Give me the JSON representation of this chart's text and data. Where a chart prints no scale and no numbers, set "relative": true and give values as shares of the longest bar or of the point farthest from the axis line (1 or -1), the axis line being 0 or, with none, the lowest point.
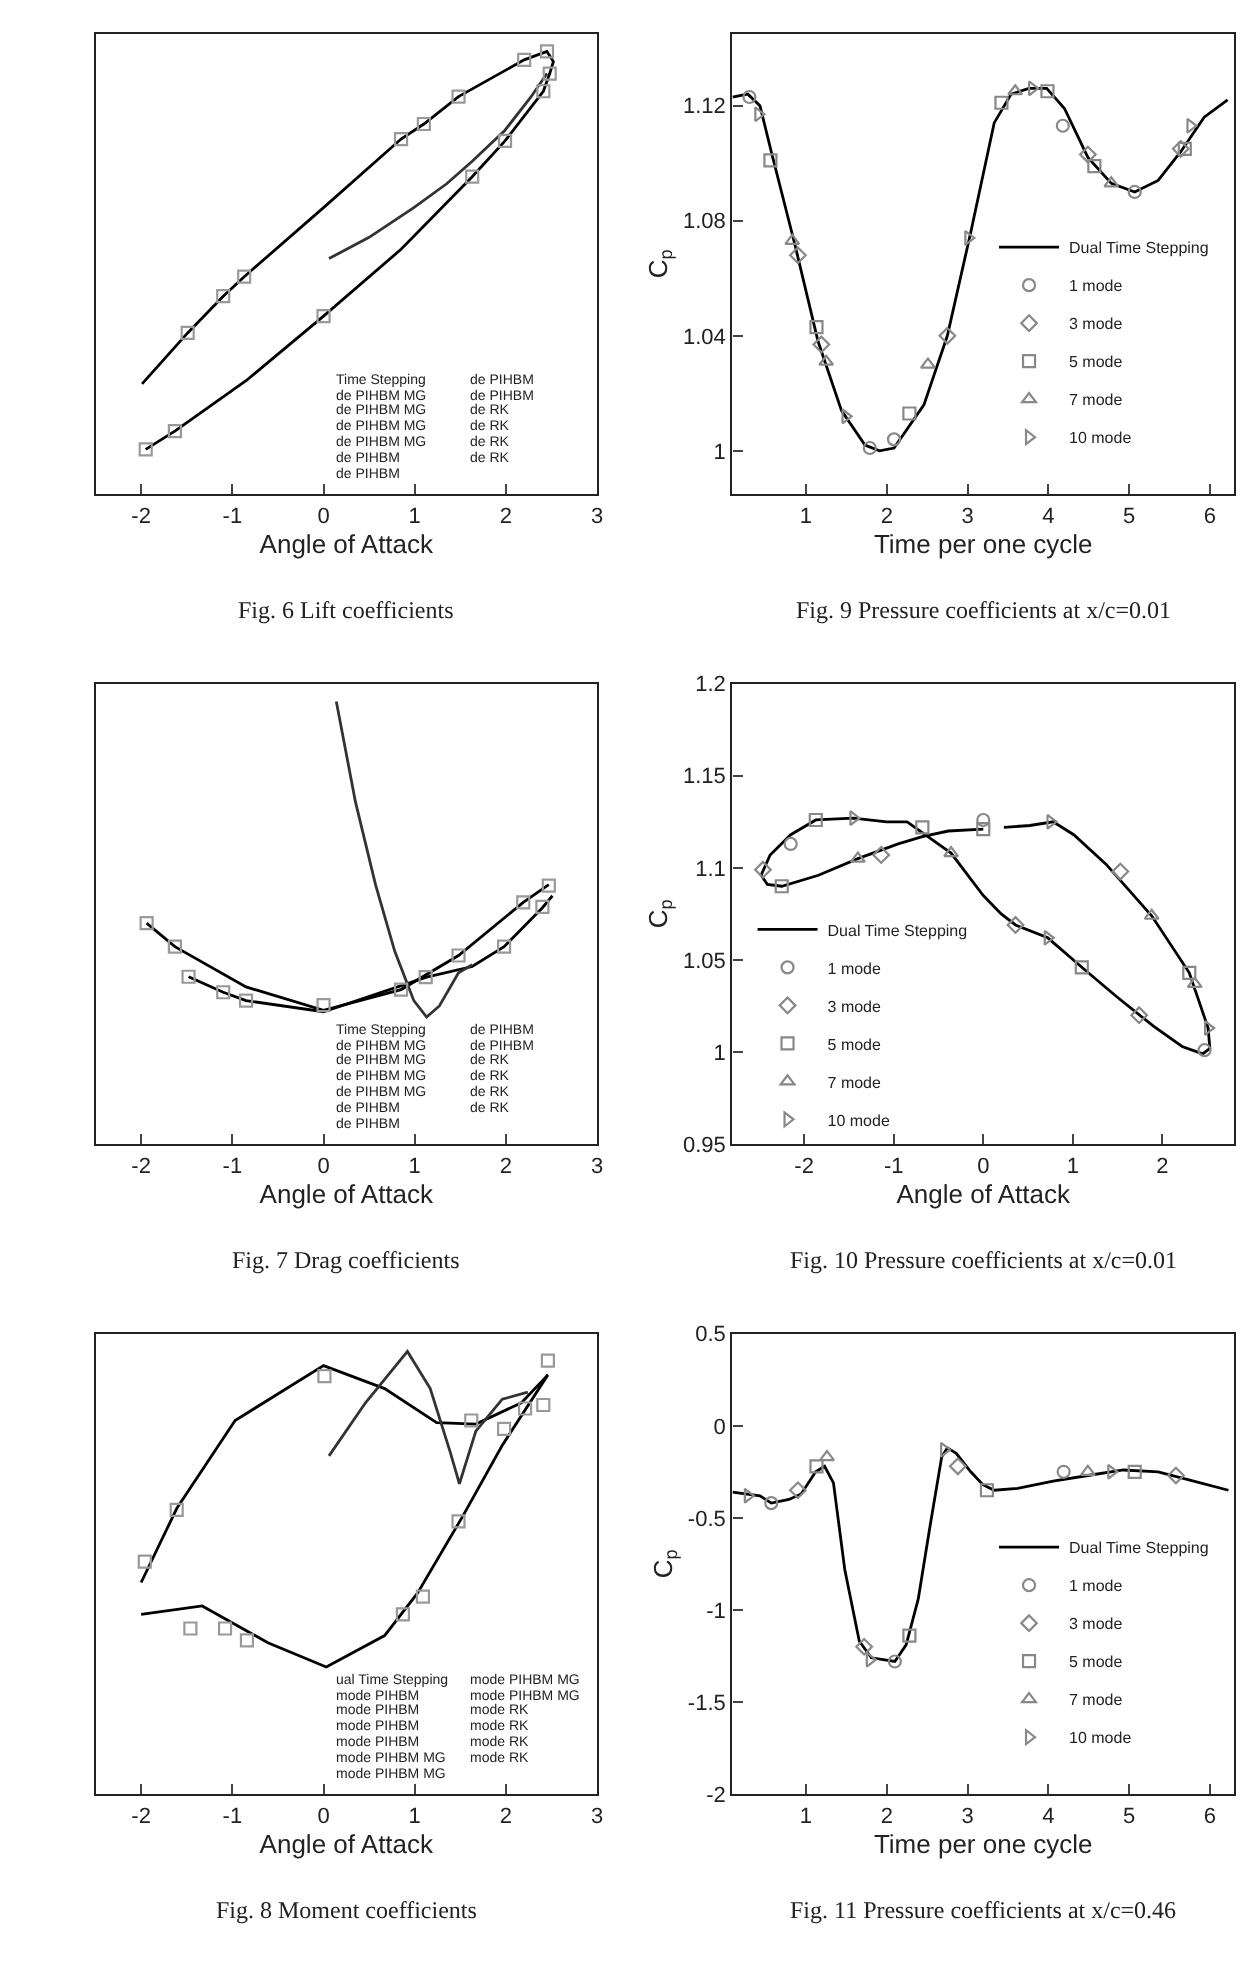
{
  "chart_data": [
    {
      "type": "line",
      "title": "Fig. 6 Lift coefficients",
      "xlabel": "Angle of Attack",
      "relative": true,
      "xlim": [
        -2.5,
        3
      ],
      "xticks": [
        -2,
        -1,
        0,
        1,
        2,
        3
      ],
      "legend": false,
      "annotations": [
        "Time Stepping",
        "de PIHBM MG",
        "de PIHBM MG",
        "de PIHBM MG",
        "de PIHBM MG",
        "de PIHBM",
        "de PIHBM",
        "de PIHBM",
        "de PIHBM",
        "de RK",
        "de RK",
        "de RK",
        "de RK"
      ],
      "series": [
        {
          "type": "line",
          "color": "#000000",
          "x": [
            -1.99,
            -1.49,
            -1.1,
            -0.87,
            0,
            0.85,
            1.1,
            1.48,
            2.2,
            2.45,
            2.52,
            2.48,
            2.41,
            1.99,
            1.63,
            0.85,
            0,
            -0.85,
            -1.63,
            -1.95
          ],
          "values": [
            0.249,
            0.364,
            0.447,
            0.491,
            0.647,
            0.802,
            0.836,
            0.898,
            0.981,
            1.0,
            0.977,
            0.95,
            0.91,
            0.798,
            0.717,
            0.553,
            0.402,
            0.256,
            0.142,
            0.101
          ]
        },
        {
          "type": "line",
          "color": "#333333",
          "x": [
            0.06,
            0.5,
            0.99,
            1.35,
            1.63,
            1.99,
            2.27,
            2.45
          ],
          "values": [
            0.532,
            0.58,
            0.647,
            0.701,
            0.752,
            0.822,
            0.896,
            0.95
          ]
        },
        {
          "type": "scatter",
          "color": "#999999",
          "marker": "square",
          "x": [
            -1.49,
            -1.1,
            -0.87,
            0.85,
            1.1,
            1.48,
            2.2,
            2.45,
            2.48,
            2.41,
            1.99,
            1.63,
            0,
            -1.63,
            -1.95
          ],
          "values": [
            0.364,
            0.447,
            0.491,
            0.802,
            0.836,
            0.898,
            0.981,
            1.0,
            0.95,
            0.91,
            0.798,
            0.717,
            0.402,
            0.142,
            0.101
          ]
        }
      ]
    },
    {
      "type": "line",
      "title": "Fig. 9 Pressure coefficients at x/c=0.01",
      "xlabel": "Time per one cycle",
      "ylabel": "C$_{p}$",
      "xlim": [
        0.09,
        6.3
      ],
      "xticks": [
        1,
        2,
        3,
        4,
        5,
        6
      ],
      "ylim": [
        0.985,
        1.145
      ],
      "yticks": [
        1,
        1.04,
        1.08,
        1.12
      ],
      "legend": "right",
      "series": [
        {
          "type": "line",
          "name": "Dual Time Stepping",
          "color": "#000000",
          "x": [
            0.09,
            0.28,
            0.43,
            0.57,
            0.86,
            1.15,
            1.44,
            1.73,
            1.91,
            2.09,
            2.46,
            2.75,
            3.04,
            3.33,
            3.54,
            3.76,
            3.98,
            4.2,
            4.49,
            4.78,
            5.07,
            5.36,
            5.64,
            5.93,
            6.22
          ],
          "values": [
            1.123,
            1.124,
            1.12,
            1.104,
            1.072,
            1.038,
            1.014,
            1.002,
            1.0,
            1.001,
            1.016,
            1.04,
            1.076,
            1.114,
            1.124,
            1.126,
            1.126,
            1.119,
            1.102,
            1.093,
            1.09,
            1.094,
            1.104,
            1.116,
            1.122
          ]
        },
        {
          "type": "scatter",
          "name": "1 mode",
          "color": "#888888",
          "marker": "circle",
          "x": [
            0.3,
            1.79,
            2.09,
            4.18,
            5.07
          ],
          "values": [
            1.123,
            1.001,
            1.004,
            1.113,
            1.09
          ]
        },
        {
          "type": "scatter",
          "name": "3 mode",
          "color": "#888888",
          "marker": "diamond",
          "x": [
            0.9,
            1.19,
            2.75,
            4.49,
            5.64
          ],
          "values": [
            1.068,
            1.037,
            1.04,
            1.103,
            1.105
          ]
        },
        {
          "type": "scatter",
          "name": "5 mode",
          "color": "#888888",
          "marker": "square",
          "x": [
            0.56,
            1.13,
            2.28,
            3.42,
            3.99,
            4.57,
            5.69
          ],
          "values": [
            1.101,
            1.043,
            1.013,
            1.121,
            1.125,
            1.099,
            1.105
          ]
        },
        {
          "type": "scatter",
          "name": "7 mode",
          "color": "#888888",
          "marker": "triangle",
          "x": [
            0.83,
            1.25,
            2.51,
            3.59,
            4.78
          ],
          "values": [
            1.073,
            1.031,
            1.03,
            1.125,
            1.093
          ]
        },
        {
          "type": "scatter",
          "name": "10 mode",
          "color": "#888888",
          "marker": "triangle-right",
          "x": [
            0.41,
            1.49,
            3.01,
            3.8,
            5.76
          ],
          "values": [
            1.117,
            1.012,
            1.074,
            1.126,
            1.113
          ]
        }
      ]
    },
    {
      "type": "line",
      "title": "Fig. 7 Drag coefficients",
      "xlabel": "Angle of Attack",
      "relative": true,
      "xlim": [
        -2.5,
        3
      ],
      "xticks": [
        -2,
        -1,
        0,
        1,
        2,
        3
      ],
      "legend": false,
      "annotations": [
        "Time Stepping",
        "de PIHBM MG",
        "de PIHBM MG",
        "de PIHBM MG",
        "de PIHBM MG",
        "de PIHBM",
        "de PIHBM",
        "de PIHBM",
        "de PIHBM",
        "de RK",
        "de RK",
        "de RK",
        "de RK"
      ],
      "series": [
        {
          "type": "line",
          "color": "#000000",
          "x": [
            -1.94,
            -1.63,
            -0.85,
            0,
            0.85,
            1.48,
            2.19,
            2.47
          ],
          "values": [
            0.499,
            0.446,
            0.355,
            0.302,
            0.349,
            0.426,
            0.546,
            0.586
          ]
        },
        {
          "type": "line",
          "color": "#000000",
          "x": [
            -1.48,
            -1.1,
            -0.85,
            0,
            1.13,
            1.63,
            1.98,
            2.4,
            2.51
          ],
          "values": [
            0.378,
            0.343,
            0.324,
            0.299,
            0.377,
            0.401,
            0.446,
            0.534,
            0.561
          ]
        },
        {
          "type": "line",
          "color": "#333333",
          "x": [
            0.14,
            0.35,
            0.57,
            0.78,
            0.99,
            1.13,
            1.27,
            1.48,
            1.63
          ],
          "values": [
            1.0,
            0.773,
            0.586,
            0.436,
            0.324,
            0.287,
            0.312,
            0.387,
            0.405
          ]
        },
        {
          "type": "scatter",
          "color": "#999999",
          "marker": "square",
          "x": [
            -1.94,
            -1.63,
            -1.48,
            -1.1,
            -0.85,
            0,
            0.85,
            1.12,
            1.48,
            1.98,
            2.19,
            2.4,
            2.47
          ],
          "values": [
            0.499,
            0.446,
            0.378,
            0.343,
            0.324,
            0.314,
            0.349,
            0.377,
            0.426,
            0.446,
            0.546,
            0.536,
            0.584
          ]
        }
      ]
    },
    {
      "type": "line",
      "title": "Fig. 10 Pressure coefficients at x/c=0.01",
      "xlabel": "Angle of Attack",
      "ylabel": "C$_{p}$",
      "xlim": [
        -2.8,
        2.8
      ],
      "xticks": [
        -2,
        -1,
        0,
        1,
        2
      ],
      "ylim": [
        0.95,
        1.2
      ],
      "yticks": [
        0.95,
        1,
        1.05,
        1.1,
        1.15,
        1.2
      ],
      "legend": "left",
      "series": [
        {
          "type": "line",
          "name": "Dual Time Stepping",
          "color": "#000000",
          "x": [
            0.23,
            0.52,
            0.78,
            1.01,
            1.37,
            1.88,
            2.3,
            2.51,
            2.53,
            2.45,
            2.22,
            1.9,
            1.49,
            1.1,
            0.72,
            0.36,
            0.2,
            0,
            -0.36,
            -0.65,
            -0.85,
            -1.08,
            -1.45,
            -1.87,
            -2.15,
            -2.38,
            -2.48,
            -2.41,
            -2.25,
            -1.84,
            -1.4,
            -0.95,
            -0.68,
            -0.39,
            0
          ],
          "values": [
            1.122,
            1.123,
            1.125,
            1.118,
            1.102,
            1.074,
            1.043,
            1.013,
            1.002,
            0.999,
            1.003,
            1.014,
            1.03,
            1.046,
            1.062,
            1.069,
            1.075,
            1.085,
            1.108,
            1.118,
            1.125,
            1.125,
            1.127,
            1.126,
            1.118,
            1.107,
            1.096,
            1.091,
            1.09,
            1.096,
            1.105,
            1.113,
            1.117,
            1.12,
            1.121
          ]
        },
        {
          "type": "scatter",
          "name": "1 mode",
          "color": "#888888",
          "marker": "circle",
          "x": [
            0,
            -2.15,
            2.47
          ],
          "values": [
            1.126,
            1.113,
            1.001
          ]
        },
        {
          "type": "scatter",
          "name": "3 mode",
          "color": "#888888",
          "marker": "diamond",
          "x": [
            -2.46,
            -1.14,
            0.36,
            1.74,
            1.53
          ],
          "values": [
            1.099,
            1.107,
            1.069,
            1.02,
            1.098
          ]
        },
        {
          "type": "scatter",
          "name": "5 mode",
          "color": "#888888",
          "marker": "square",
          "x": [
            -2.25,
            -1.87,
            -0.68,
            0,
            1.1,
            2.3
          ],
          "values": [
            1.09,
            1.126,
            1.122,
            1.121,
            1.046,
            1.043
          ]
        },
        {
          "type": "scatter",
          "name": "7 mode",
          "color": "#888888",
          "marker": "triangle",
          "x": [
            -1.4,
            -0.36,
            1.88,
            2.36
          ],
          "values": [
            1.105,
            1.108,
            1.074,
            1.037
          ]
        },
        {
          "type": "scatter",
          "name": "10 mode",
          "color": "#888888",
          "marker": "triangle-right",
          "x": [
            -1.45,
            0.75,
            0.72,
            2.51
          ],
          "values": [
            1.127,
            1.125,
            1.062,
            1.013
          ]
        }
      ]
    },
    {
      "type": "line",
      "title": "Fig. 8 Moment coefficients",
      "xlabel": "Angle of Attack",
      "relative": true,
      "xlim": [
        -2.5,
        3
      ],
      "xticks": [
        -2,
        -1,
        0,
        1,
        2,
        3
      ],
      "legend": false,
      "annotations": [
        "ual Time Stepping",
        "mode PIHBM",
        "mode PIHBM",
        "mode PIHBM",
        "mode PIHBM",
        "mode PIHBM MG",
        "mode PIHBM MG",
        "mode PIHBM MG",
        "mode PIHBM MG",
        "mode RK",
        "mode RK",
        "mode RK",
        "mode RK"
      ],
      "series": [
        {
          "type": "line",
          "color": "#000000",
          "x": [
            -2.0,
            -1.61,
            -0.97,
            0,
            0.67,
            1.24,
            1.67,
            2.17,
            2.46,
            1.96,
            1.53,
            1.03,
            0.67,
            0.03,
            -0.61,
            -1.33,
            -2.0
          ],
          "values": [
            0.478,
            0.645,
            0.844,
            0.968,
            0.916,
            0.839,
            0.836,
            0.884,
            0.947,
            0.788,
            0.629,
            0.454,
            0.358,
            0.287,
            0.342,
            0.425,
            0.406
          ]
        },
        {
          "type": "line",
          "color": "#333333",
          "x": [
            0.06,
            0.46,
            0.92,
            1.17,
            1.39,
            1.49,
            1.67,
            1.96,
            2.24
          ],
          "values": [
            0.764,
            0.884,
            1.0,
            0.916,
            0.772,
            0.701,
            0.82,
            0.892,
            0.908
          ]
        },
        {
          "type": "scatter",
          "color": "#999999",
          "marker": "square",
          "x": [
            -1.96,
            -1.61,
            0.01,
            1.62,
            1.98,
            2.21,
            2.41,
            2.46,
            1.48,
            1.09,
            0.87,
            -1.46,
            -1.08,
            -0.84
          ],
          "values": [
            0.525,
            0.642,
            0.944,
            0.844,
            0.825,
            0.871,
            0.879,
            0.979,
            0.616,
            0.446,
            0.406,
            0.374,
            0.374,
            0.347
          ]
        }
      ]
    },
    {
      "type": "line",
      "title": "Fig. 11 Pressure coefficients at x/c=0.46",
      "xlabel": "Time per one cycle",
      "ylabel": "C$_{p}$",
      "xlim": [
        0.09,
        6.3
      ],
      "xticks": [
        1,
        2,
        3,
        4,
        5,
        6
      ],
      "ylim": [
        -2,
        0.5
      ],
      "yticks": [
        -2,
        -1.5,
        -1,
        -0.5,
        0,
        0.5
      ],
      "legend": "right",
      "series": [
        {
          "type": "line",
          "name": "Dual Time Stepping",
          "color": "#000000",
          "x": [
            0.09,
            0.43,
            0.57,
            0.79,
            0.94,
            1.12,
            1.23,
            1.34,
            1.48,
            1.66,
            1.81,
            2.1,
            2.24,
            2.39,
            2.53,
            2.68,
            2.75,
            2.86,
            3.04,
            3.19,
            3.33,
            3.62,
            4.06,
            4.49,
            4.93,
            5.36,
            5.8,
            6.23
          ],
          "values": [
            -0.36,
            -0.38,
            -0.42,
            -0.4,
            -0.37,
            -0.25,
            -0.22,
            -0.31,
            -0.78,
            -1.17,
            -1.26,
            -1.28,
            -1.19,
            -0.94,
            -0.56,
            -0.17,
            -0.12,
            -0.15,
            -0.25,
            -0.32,
            -0.35,
            -0.34,
            -0.3,
            -0.27,
            -0.24,
            -0.25,
            -0.3,
            -0.35
          ]
        },
        {
          "type": "scatter",
          "name": "1 mode",
          "color": "#888888",
          "marker": "circle",
          "x": [
            0.57,
            2.1,
            4.19
          ],
          "values": [
            -0.42,
            -1.28,
            -0.25
          ]
        },
        {
          "type": "scatter",
          "name": "3 mode",
          "color": "#888888",
          "marker": "diamond",
          "x": [
            0.9,
            1.72,
            2.88,
            5.58
          ],
          "values": [
            -0.35,
            -1.2,
            -0.22,
            -0.27
          ]
        },
        {
          "type": "scatter",
          "name": "5 mode",
          "color": "#888888",
          "marker": "square",
          "x": [
            1.13,
            2.28,
            3.24,
            5.07
          ],
          "values": [
            -0.22,
            -1.14,
            -0.35,
            -0.25
          ]
        },
        {
          "type": "scatter",
          "name": "7 mode",
          "color": "#888888",
          "marker": "triangle",
          "x": [
            1.26,
            4.49
          ],
          "values": [
            -0.17,
            -0.25
          ]
        },
        {
          "type": "scatter",
          "name": "10 mode",
          "color": "#888888",
          "marker": "triangle-right",
          "x": [
            0.28,
            1.79,
            2.71,
            4.78
          ],
          "values": [
            -0.38,
            -1.27,
            -0.13,
            -0.25
          ]
        }
      ]
    }
  ]
}
